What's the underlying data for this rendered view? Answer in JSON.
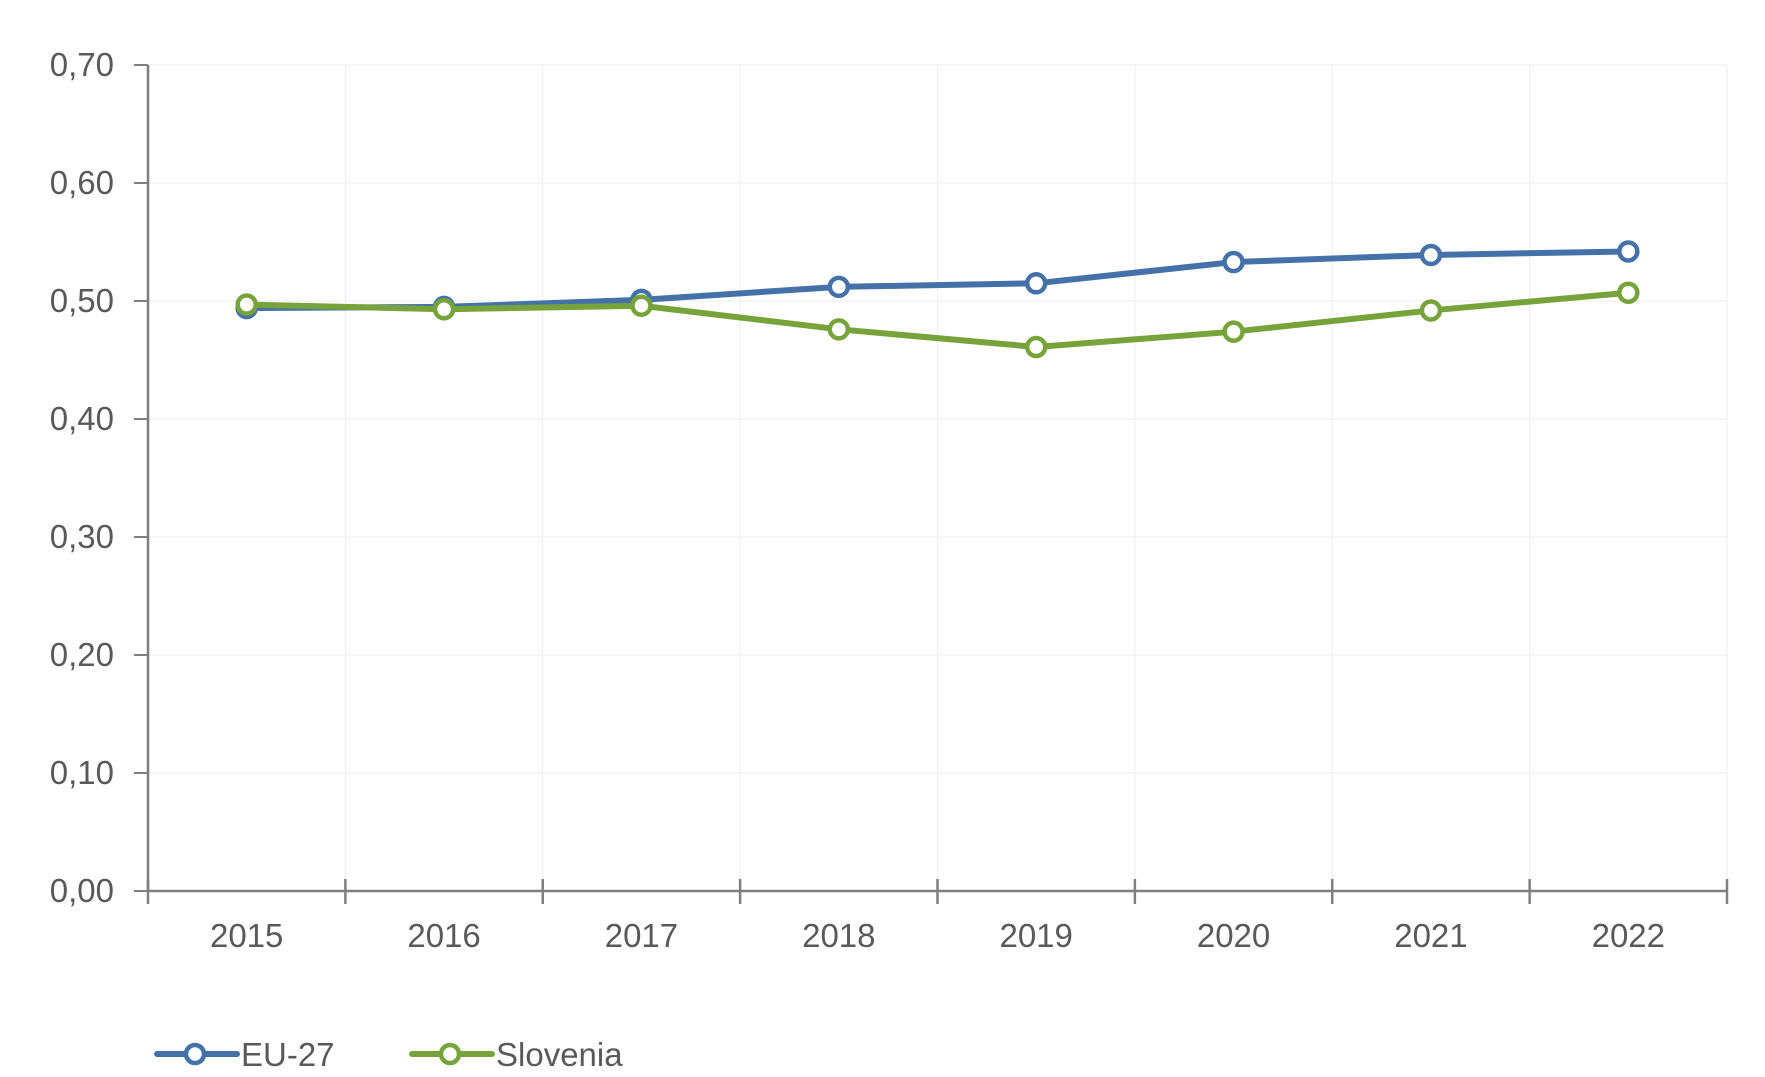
{
  "chart_data": {
    "type": "line",
    "categories": [
      "2015",
      "2016",
      "2017",
      "2018",
      "2019",
      "2020",
      "2021",
      "2022"
    ],
    "y_ticks": [
      "0,00",
      "0,10",
      "0,20",
      "0,30",
      "0,40",
      "0,50",
      "0,60",
      "0,70"
    ],
    "ylim": [
      0,
      0.7
    ],
    "grid": true,
    "legend_position": "bottom-left",
    "series": [
      {
        "name": "EU-27",
        "color": "#4472a8",
        "values": [
          0.494,
          0.495,
          0.501,
          0.512,
          0.515,
          0.533,
          0.539,
          0.542
        ]
      },
      {
        "name": "Slovenia",
        "color": "#77a33a",
        "values": [
          0.497,
          0.493,
          0.496,
          0.476,
          0.461,
          0.474,
          0.492,
          0.507
        ]
      }
    ]
  }
}
